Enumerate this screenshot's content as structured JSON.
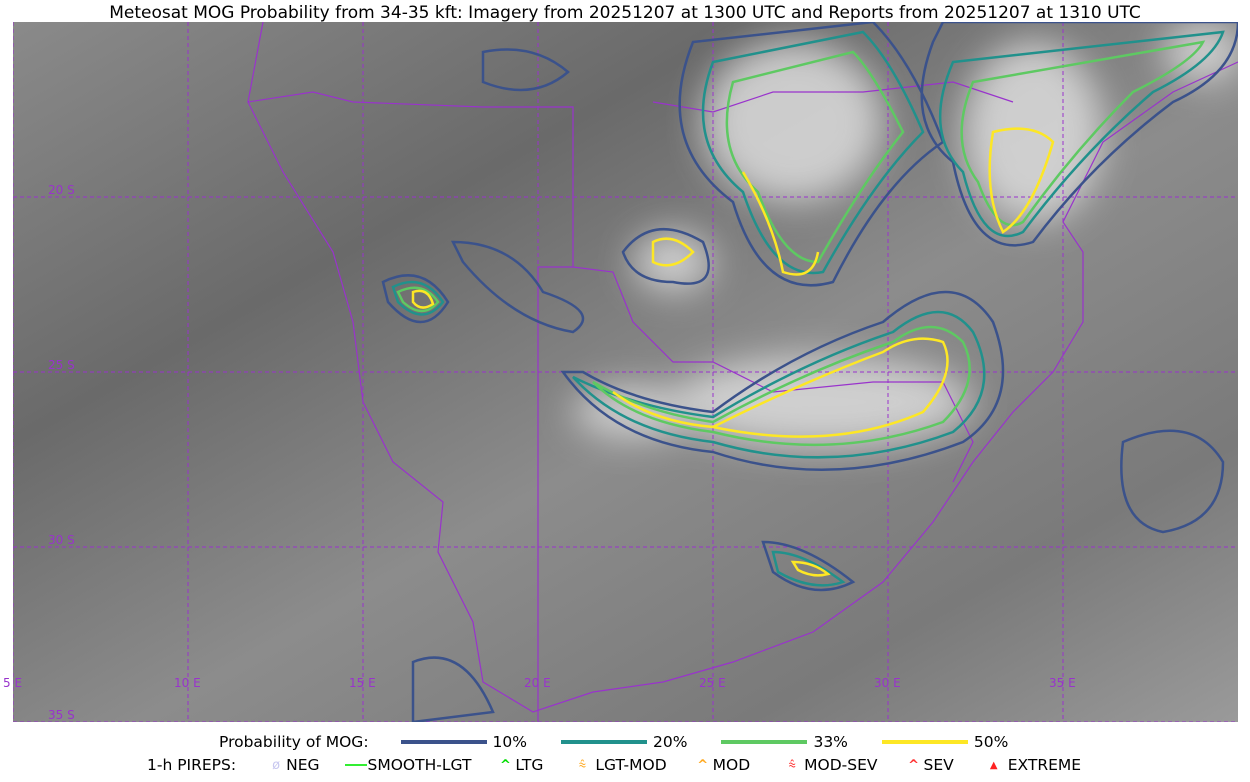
{
  "title": "Meteosat MOG Probability from 34-35 kft: Imagery from 20251207 at 1300 UTC and Reports from 20251207 at 1310 UTC",
  "map": {
    "lon_labels": [
      "5 E",
      "10 E",
      "15 E",
      "20 E",
      "25 E",
      "30 E",
      "35 E"
    ],
    "lat_labels": [
      "20 S",
      "25 S",
      "30 S",
      "35 S"
    ],
    "grid_color": "#9933cc",
    "border_color": "#9933cc"
  },
  "legend": {
    "prob_label": "Probability of MOG:",
    "prob_items": [
      {
        "label": "10%",
        "color": "#3b528b"
      },
      {
        "label": "20%",
        "color": "#21918c"
      },
      {
        "label": "33%",
        "color": "#5ec962"
      },
      {
        "label": "50%",
        "color": "#fde725"
      }
    ],
    "pirep_label": "1-h PIREPS:",
    "pirep_items": [
      {
        "label": "NEG",
        "color": "#c8c8f0",
        "icon": "neg-circle-slash-icon",
        "glyph": "ø"
      },
      {
        "label": "SMOOTH-LGT",
        "color": "#33ee33",
        "icon": "line-icon",
        "glyph": "—"
      },
      {
        "label": "LTG",
        "color": "#00dd00",
        "icon": "caret-icon",
        "glyph": "^"
      },
      {
        "label": "LGT-MOD",
        "color": "#ffaa22",
        "icon": "caret-bar-icon",
        "glyph": "⩯"
      },
      {
        "label": "MOD",
        "color": "#ffaa22",
        "icon": "caret-icon",
        "glyph": "^"
      },
      {
        "label": "MOD-SEV",
        "color": "#ff3333",
        "icon": "double-caret-bar-icon",
        "glyph": "⩯"
      },
      {
        "label": "SEV",
        "color": "#ff3333",
        "icon": "double-caret-icon",
        "glyph": "^"
      },
      {
        "label": "EXTREME",
        "color": "#ff2222",
        "icon": "filled-triangle-icon",
        "glyph": "▲"
      }
    ]
  }
}
